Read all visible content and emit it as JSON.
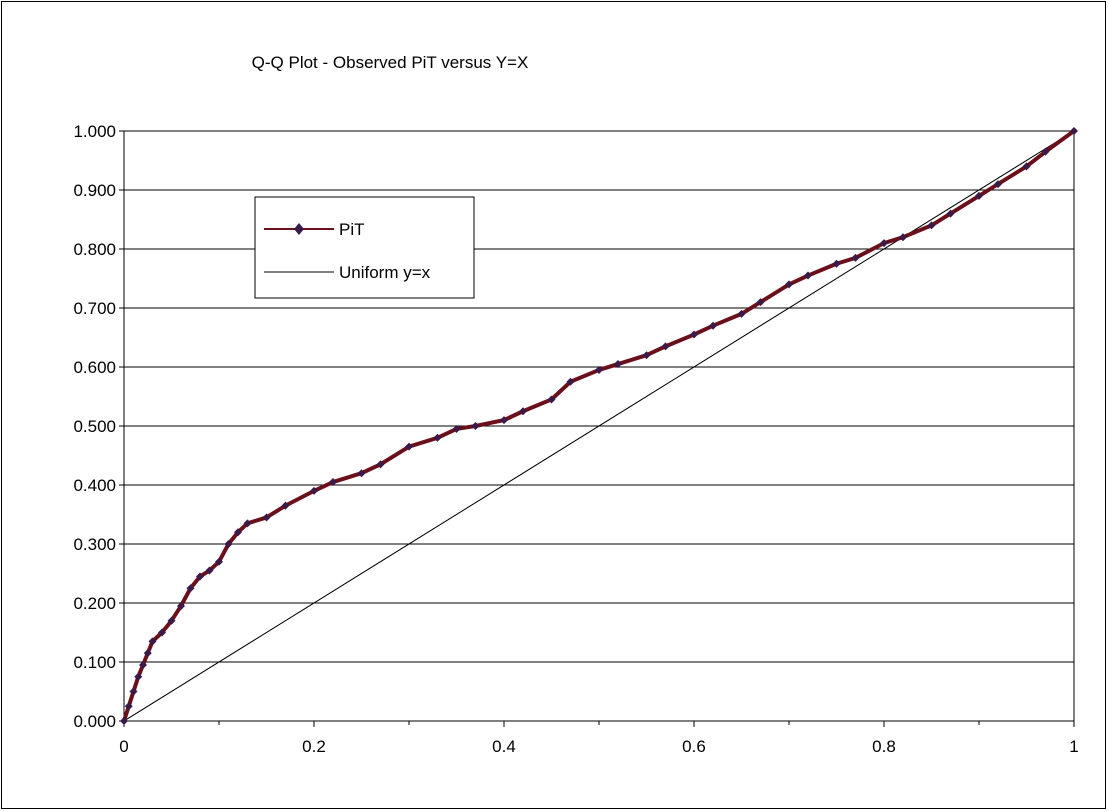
{
  "chart_data": {
    "type": "line",
    "title": "Q-Q Plot - Observed PiT versus Y=X",
    "xlabel": "",
    "ylabel": "",
    "xlim": [
      0,
      1
    ],
    "ylim": [
      0,
      1
    ],
    "grid": "horizontal",
    "legend_position": "upper-left",
    "x_ticks": [
      "0",
      "0.2",
      "0.4",
      "0.6",
      "0.8",
      "1"
    ],
    "y_ticks": [
      "0.000",
      "0.100",
      "0.200",
      "0.300",
      "0.400",
      "0.500",
      "0.600",
      "0.700",
      "0.800",
      "0.900",
      "1.000"
    ],
    "series": [
      {
        "name": "PiT",
        "color": "#6B0F1A",
        "marker": "diamond",
        "x": [
          0,
          0.005,
          0.01,
          0.015,
          0.02,
          0.025,
          0.03,
          0.04,
          0.05,
          0.06,
          0.07,
          0.08,
          0.09,
          0.1,
          0.11,
          0.12,
          0.13,
          0.15,
          0.17,
          0.2,
          0.22,
          0.25,
          0.27,
          0.3,
          0.33,
          0.35,
          0.37,
          0.4,
          0.42,
          0.45,
          0.47,
          0.5,
          0.52,
          0.55,
          0.57,
          0.6,
          0.62,
          0.65,
          0.67,
          0.7,
          0.72,
          0.75,
          0.77,
          0.8,
          0.82,
          0.85,
          0.87,
          0.9,
          0.92,
          0.95,
          0.97,
          1.0
        ],
        "y": [
          0.0,
          0.025,
          0.05,
          0.075,
          0.095,
          0.115,
          0.135,
          0.15,
          0.17,
          0.195,
          0.225,
          0.245,
          0.255,
          0.27,
          0.3,
          0.32,
          0.335,
          0.345,
          0.365,
          0.39,
          0.405,
          0.42,
          0.435,
          0.465,
          0.48,
          0.495,
          0.5,
          0.51,
          0.525,
          0.545,
          0.575,
          0.595,
          0.605,
          0.62,
          0.635,
          0.655,
          0.67,
          0.69,
          0.71,
          0.74,
          0.755,
          0.775,
          0.785,
          0.81,
          0.82,
          0.84,
          0.86,
          0.89,
          0.91,
          0.94,
          0.965,
          1.0
        ]
      },
      {
        "name": "Uniform y=x",
        "color": "#000000",
        "marker": "none",
        "x": [
          0,
          1
        ],
        "y": [
          0,
          1
        ]
      }
    ]
  }
}
